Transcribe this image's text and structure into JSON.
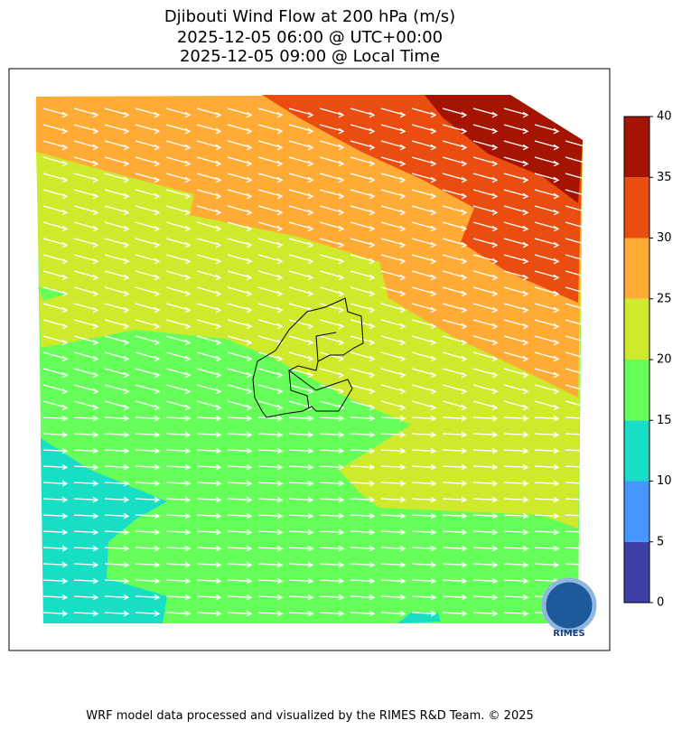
{
  "title": [
    "Djibouti Wind Flow at 200 hPa (m/s)",
    "2025-12-05 06:00 @ UTC+00:00",
    "2025-12-05 09:00 @ Local Time"
  ],
  "colorbar": {
    "ticks": [
      0,
      5,
      10,
      15,
      20,
      25,
      30,
      35,
      40
    ],
    "colors": [
      "#3f3fa8",
      "#4596ff",
      "#19dec6",
      "#66ff5a",
      "#cfea2c",
      "#ffab36",
      "#eb4d10",
      "#a51402"
    ]
  },
  "logo": "RIMES",
  "footer": "WRF model data processed and visualized by the RIMES R&D Team. © 2025"
}
